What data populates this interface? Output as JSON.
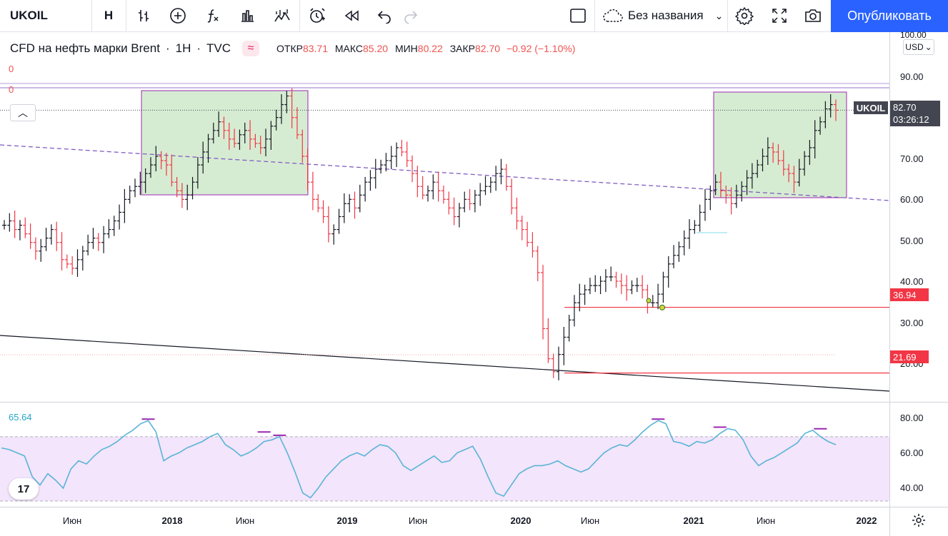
{
  "toolbar": {
    "symbol": "UKOIL",
    "interval": "H",
    "layout_name": "Без названия",
    "publish_label": "Опубликовать",
    "icons": [
      "bar-style-icon",
      "add-indicator-icon",
      "fx-indicator-icon",
      "chart-bars-icon",
      "compare-icon",
      "alert-icon",
      "replay-icon",
      "undo-icon",
      "redo-icon",
      "fullscreen-square-icon",
      "cloud-icon",
      "settings-icon",
      "fullscreen-icon",
      "camera-icon"
    ]
  },
  "legend": {
    "title": "CFD на нефть марки Brent",
    "interval": "1Н",
    "source": "TVC",
    "open_label": "ОТКР",
    "open": "83.71",
    "high_label": "МАКС",
    "high": "85.20",
    "low_label": "МИН",
    "low": "80.22",
    "close_label": "ЗАКР",
    "close": "82.70",
    "change": "−0.92 (−1.10%)",
    "zero_1": "0",
    "zero_2": "0"
  },
  "price_axis": {
    "currency": "USD",
    "ticks": [
      "100.00",
      "90.00",
      "70.00",
      "60.00",
      "50.00",
      "40.00",
      "30.00",
      "20.00"
    ],
    "symbol_tag": "UKOIL",
    "current_price": "82.70",
    "countdown": "03:26:12",
    "level_1": "36.94",
    "level_2": "21.69",
    "level_color": "#f23645"
  },
  "rsi_axis": {
    "value": "65.64",
    "ticks": [
      "80.00",
      "60.00",
      "40.00"
    ]
  },
  "time_axis": {
    "ticks": [
      {
        "label": "Июн",
        "year": false
      },
      {
        "label": "2018",
        "year": true
      },
      {
        "label": "Июн",
        "year": false
      },
      {
        "label": "2019",
        "year": true
      },
      {
        "label": "Июн",
        "year": false
      },
      {
        "label": "2020",
        "year": true
      },
      {
        "label": "Июн",
        "year": false
      },
      {
        "label": "2021",
        "year": true
      },
      {
        "label": "Июн",
        "year": false
      },
      {
        "label": "2022",
        "year": true
      }
    ]
  },
  "logo_text": "17",
  "colors": {
    "up": "#131722",
    "down": "#f23645",
    "box_fill": "#d6ecd2",
    "box_border": "#9c27b0",
    "rsi_line": "#5ab4d8",
    "rsi_band": "#f3e5fb"
  },
  "chart_data": {
    "type": "candlestick",
    "series_close": [
      56,
      57,
      55,
      56,
      54,
      52,
      50,
      51,
      53,
      55,
      52,
      48,
      47,
      46,
      48,
      50,
      52,
      53,
      52,
      54,
      55,
      57,
      59,
      62,
      64,
      65,
      66,
      68,
      70,
      72,
      71,
      70,
      66,
      64,
      62,
      63,
      66,
      70,
      73,
      76,
      78,
      80,
      78,
      76,
      75,
      77,
      78,
      76,
      75,
      74,
      76,
      79,
      81,
      84,
      86,
      81,
      77,
      72,
      66,
      62,
      60,
      58,
      54,
      55,
      58,
      61,
      62,
      60,
      63,
      66,
      67,
      69,
      70,
      71,
      72,
      74,
      73,
      71,
      68,
      65,
      63,
      64,
      66,
      64,
      62,
      60,
      58,
      60,
      62,
      61,
      63,
      64,
      65,
      66,
      68,
      69,
      65,
      60,
      57,
      55,
      52,
      50,
      45,
      32,
      25,
      22,
      26,
      30,
      34,
      38,
      40,
      41,
      42,
      42,
      43,
      44,
      44,
      43,
      42,
      41,
      42,
      42,
      41,
      38,
      38,
      40,
      44,
      47,
      49,
      51,
      53,
      55,
      56,
      59,
      62,
      64,
      66,
      64,
      63,
      61,
      63,
      65,
      67,
      68,
      70,
      72,
      74,
      73,
      71,
      69,
      68,
      66,
      69,
      72,
      74,
      78,
      80,
      83,
      84,
      82.7
    ],
    "ylim": [
      15,
      100
    ],
    "levels": [
      36.94,
      21.69
    ],
    "rsi": [
      63,
      62,
      60,
      58,
      45,
      40,
      47,
      43,
      38,
      50,
      55,
      53,
      58,
      62,
      64,
      67,
      71,
      74,
      78,
      80,
      73,
      55,
      58,
      60,
      63,
      65,
      67,
      70,
      72,
      65,
      62,
      58,
      60,
      63,
      67,
      68,
      70,
      60,
      48,
      35,
      32,
      38,
      45,
      50,
      55,
      58,
      60,
      58,
      62,
      65,
      64,
      60,
      52,
      49,
      52,
      55,
      58,
      54,
      55,
      60,
      62,
      64,
      56,
      45,
      35,
      33,
      40,
      47,
      50,
      52,
      52,
      53,
      55,
      52,
      50,
      48,
      50,
      55,
      60,
      63,
      65,
      64,
      68,
      73,
      77,
      80,
      78,
      67,
      66,
      64,
      67,
      66,
      68,
      72,
      75,
      74,
      68,
      58,
      52,
      55,
      57,
      60,
      63,
      66,
      72,
      74,
      70,
      67,
      65
    ],
    "rsi_ylim": [
      30,
      85
    ]
  }
}
